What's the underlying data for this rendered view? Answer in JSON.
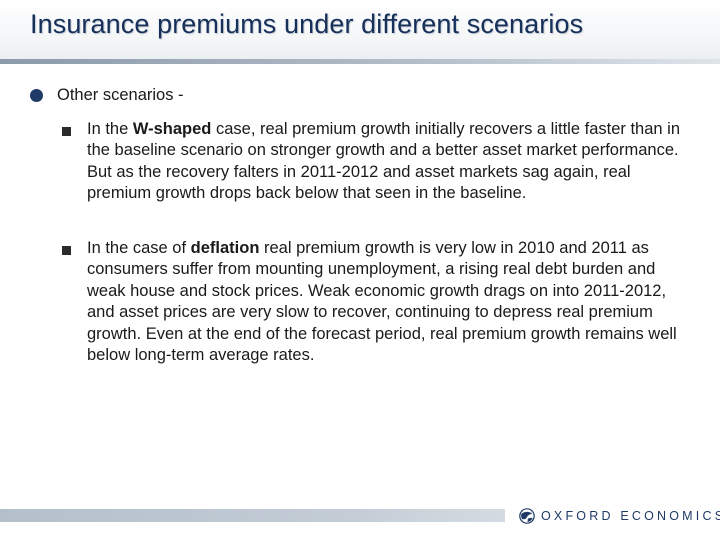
{
  "slide": {
    "title": "Insurance premiums under different scenarios"
  },
  "bullet": {
    "text": "Other scenarios -"
  },
  "sub_bullets": [
    {
      "before": "In the ",
      "emphasis": "W-shaped",
      "after": " case, real premium growth initially recovers a little faster than in the baseline scenario on stronger growth and a better asset market performance. But as the recovery falters in 2011-2012 and asset markets sag again, real premium growth drops back below that seen in the baseline."
    },
    {
      "before": "In the case of ",
      "emphasis": "deflation",
      "after": " real premium growth is very low in 2010 and 2011 as consumers suffer from mounting unemployment, a rising real debt burden and weak house and stock prices. Weak economic growth drags on into 2011-2012, and asset prices are very slow to recover, continuing to depress real premium growth. Even at the end of the forecast period, real premium growth remains well below long-term average rates."
    }
  ],
  "footer": {
    "logo_text": "OXFORD ECONOMICS",
    "logo_icon": "globe-icon"
  },
  "colors": {
    "title": "#16305a",
    "bullet_dot": "#1f3a66",
    "sub_bullet_square": "#2b2b2b",
    "footer_bar": "#c4cdd6"
  }
}
